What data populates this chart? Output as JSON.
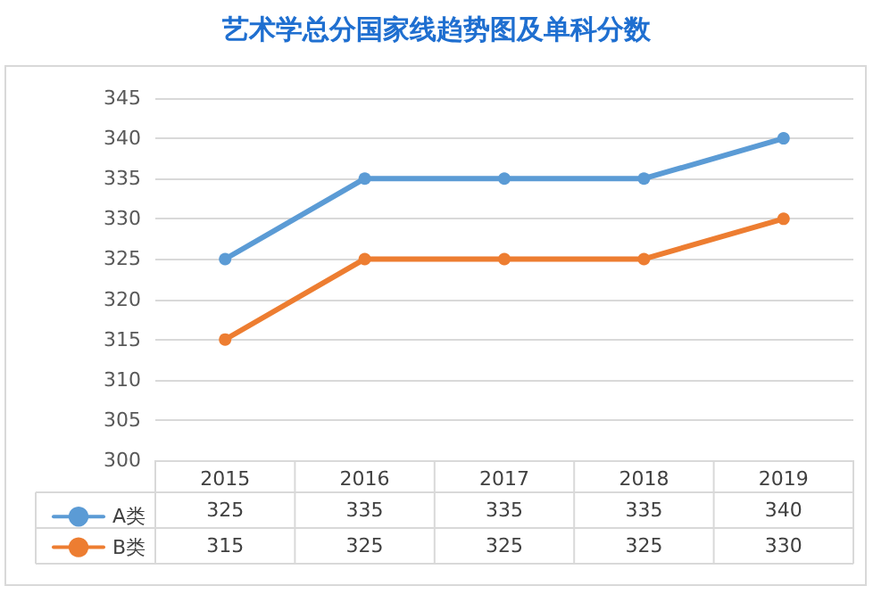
{
  "chart_data": {
    "type": "line",
    "title": "艺术学总分国家线趋势图及单科分数",
    "categories": [
      "2015",
      "2016",
      "2017",
      "2018",
      "2019"
    ],
    "series": [
      {
        "name": "A类",
        "color": "#5b9bd5",
        "values": [
          325,
          335,
          335,
          335,
          340
        ]
      },
      {
        "name": "B类",
        "color": "#ed7d31",
        "values": [
          315,
          325,
          325,
          325,
          330
        ]
      }
    ],
    "ylim": [
      300,
      345
    ],
    "yticks": [
      300,
      305,
      310,
      315,
      320,
      325,
      330,
      335,
      340,
      345
    ],
    "grid": "y",
    "legend": "bottom",
    "marker": "circle",
    "line_style": "solid",
    "data_labels": true
  }
}
